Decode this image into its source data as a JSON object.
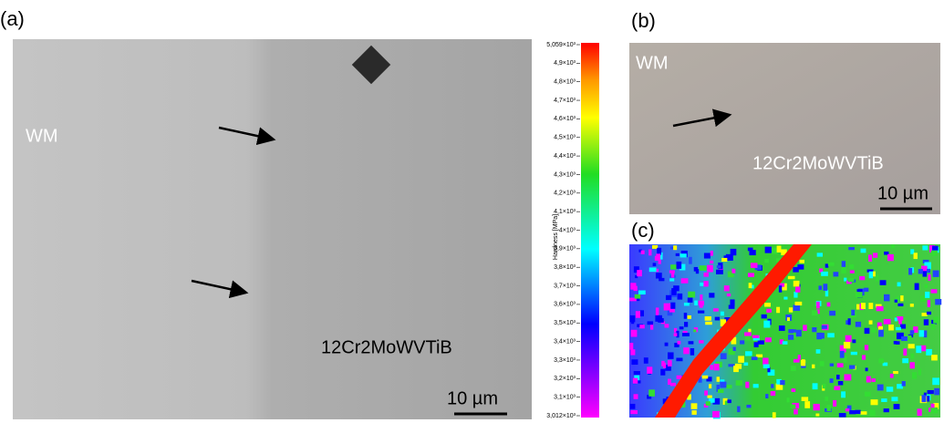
{
  "panels": [
    {
      "label": "(a)",
      "texts": [
        "WM",
        "12Cr2MoWVTiB"
      ],
      "scale_bar": "10 µm"
    },
    {
      "label": "(b)",
      "texts": [
        "WM",
        "12Cr2MoWVTiB"
      ],
      "scale_bar": "10 µm"
    },
    {
      "label": "(c)"
    }
  ],
  "colorbar": {
    "title": "Hardness [MPa]",
    "ticks": [
      "5,059×10³",
      "4,9×10³",
      "4,8×10³",
      "4,7×10³",
      "4,6×10³",
      "4,5×10³",
      "4,4×10³",
      "4,3×10³",
      "4,2×10³",
      "4,1×10³",
      "4×10³",
      "3,9×10³",
      "3,8×10³",
      "3,7×10³",
      "3,6×10³",
      "3,5×10³",
      "3,4×10³",
      "3,3×10³",
      "3,2×10³",
      "3,1×10³",
      "3,012×10³"
    ]
  }
}
